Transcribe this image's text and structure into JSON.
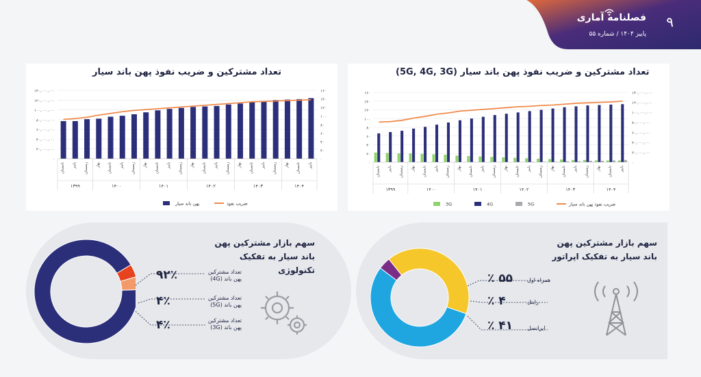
{
  "header": {
    "magazine_title": "فصلنامه آماری",
    "issue_line": "پاییز ۱۴۰۴ / شماره ۵۵",
    "page_number": "۹",
    "colors": {
      "header": "#3a2a78",
      "accent": "#f07a3c"
    }
  },
  "chart_data": [
    {
      "type": "bar",
      "title": "تعداد مشترکین و ضریب نفوذ پهن باند سیار",
      "categories": [
        "تابستان",
        "پاییز",
        "زمستان",
        "بهار",
        "تابستان",
        "پاییز",
        "زمستان",
        "بهار",
        "تابستان",
        "پاییز",
        "زمستان",
        "بهار",
        "تابستان",
        "پاییز",
        "زمستان",
        "بهار",
        "تابستان",
        "پاییز",
        "زمستان",
        "بهار",
        "تابستان",
        "پاییز"
      ],
      "year_groups": [
        {
          "label": "۱۳۹۹",
          "count": 3
        },
        {
          "label": "۱۴۰۰",
          "count": 4
        },
        {
          "label": "۱۴۰۱",
          "count": 4
        },
        {
          "label": "۱۴۰۲",
          "count": 4
        },
        {
          "label": "۱۴۰۳",
          "count": 4
        },
        {
          "label": "۱۴۰۴",
          "count": 3
        }
      ],
      "series": [
        {
          "name": "پهن باند سیار",
          "type": "bar",
          "axis": "left",
          "color": "#2b2f7a",
          "values": [
            77,
            77,
            81,
            82,
            86,
            88,
            91,
            95,
            99,
            102,
            104,
            106,
            107,
            108,
            111,
            113,
            116,
            118,
            120,
            121,
            122,
            124
          ]
        },
        {
          "name": "ضریب نفوذ",
          "type": "line",
          "axis": "right",
          "color": "#f08a4b",
          "values": [
            92,
            94,
            97,
            102,
            106,
            110,
            113,
            115,
            117,
            119,
            121,
            123,
            125,
            127,
            129,
            131,
            133,
            134,
            135,
            136,
            137,
            138
          ]
        }
      ],
      "left_axis": {
        "ylim": [
          0,
          140000000
        ],
        "ticks": [
          "۰",
          "۲۰,۰۰۰,۰۰۰",
          "۴۰,۰۰۰,۰۰۰",
          "۶۰,۰۰۰,۰۰۰",
          "۸۰,۰۰۰,۰۰۰",
          "۱۰۰,۰۰۰,۰۰۰",
          "۱۲۰,۰۰۰,۰۰۰",
          "۱۴۰,۰۰۰,۰۰۰"
        ]
      },
      "right_axis": {
        "ylim": [
          0,
          160
        ],
        "ticks": [
          "۰",
          "۲۰",
          "۴۰",
          "۶۰",
          "۸۰",
          "۱۰۰",
          "۱۲۰",
          "۱۴۰",
          "۱۶۰"
        ]
      },
      "legend": [
        "ضریب نفوذ",
        "پهن باند سیار"
      ]
    },
    {
      "type": "bar",
      "title": "تعداد مشترکین و ضریب نفوذ پهن باند سیار (5G, 4G, 3G)",
      "categories": [
        "تابستان",
        "پاییز",
        "زمستان",
        "بهار",
        "تابستان",
        "پاییز",
        "زمستان",
        "بهار",
        "تابستان",
        "پاییز",
        "زمستان",
        "بهار",
        "تابستان",
        "پاییز",
        "زمستان",
        "بهار",
        "تابستان",
        "پاییز",
        "زمستان",
        "بهار",
        "تابستان",
        "پاییز"
      ],
      "year_groups": [
        {
          "label": "۱۳۹۹",
          "count": 3
        },
        {
          "label": "۱۴۰۰",
          "count": 4
        },
        {
          "label": "۱۴۰۱",
          "count": 4
        },
        {
          "label": "۱۴۰۲",
          "count": 4
        },
        {
          "label": "۱۴۰۳",
          "count": 4
        },
        {
          "label": "۱۴۰۴",
          "count": 3
        }
      ],
      "series": [
        {
          "name": "3G",
          "type": "bar",
          "axis": "right",
          "color": "#8fd36b",
          "values": [
            22,
            21,
            20,
            20,
            19,
            18,
            17,
            15,
            14,
            13,
            12,
            11,
            10,
            9,
            8,
            7,
            6,
            5,
            5,
            4,
            4,
            4
          ]
        },
        {
          "name": "4G",
          "type": "bar",
          "axis": "right",
          "color": "#2b2f7a",
          "values": [
            66,
            69,
            72,
            77,
            81,
            86,
            91,
            96,
            100,
            104,
            108,
            111,
            114,
            117,
            120,
            123,
            126,
            128,
            130,
            131,
            132,
            133
          ]
        },
        {
          "name": "5G",
          "type": "bar",
          "axis": "right",
          "color": "#a7a9ad",
          "values": [
            0,
            0,
            0,
            0,
            0,
            0,
            0,
            0,
            0,
            0,
            0,
            0,
            0,
            1,
            1,
            1,
            2,
            2,
            3,
            3,
            4,
            5
          ]
        },
        {
          "name": "ضریب نفوذ پهن باند سیار",
          "type": "line",
          "axis": "right",
          "color": "#f08a4b",
          "values": [
            92,
            93,
            96,
            101,
            105,
            110,
            113,
            117,
            119,
            121,
            123,
            125,
            127,
            128,
            130,
            131,
            133,
            135,
            136,
            137,
            138,
            140
          ]
        }
      ],
      "left_axis": {
        "ylim": [
          0,
          160
        ],
        "ticks": [
          "۰",
          "۲۰",
          "۴۰",
          "۶۰",
          "۸۰",
          "۱۰۰",
          "۱۲۰",
          "۱۴۰",
          "۱۶۰"
        ]
      },
      "right_axis": {
        "ylim": [
          0,
          140000000
        ],
        "ticks": [
          "۰",
          "۲۰,۰۰۰,۰۰۰",
          "۴۰,۰۰۰,۰۰۰",
          "۶۰,۰۰۰,۰۰۰",
          "۸۰,۰۰۰,۰۰۰",
          "۱۰۰,۰۰۰,۰۰۰",
          "۱۲۰,۰۰۰,۰۰۰",
          "۱۴۰,۰۰۰,۰۰۰"
        ]
      },
      "legend": [
        "3G",
        "4G",
        "5G",
        "ضریب نفوذ پهن باند سیار"
      ]
    },
    {
      "type": "pie",
      "title": "سهم بازار مشترکین پهن باند سیار به تفکیک تکنولوژی",
      "slices": [
        {
          "label": "تعداد مشترکین پهن باند (4G)",
          "value": 92,
          "display": "۹۲٪",
          "color": "#2b2f7a"
        },
        {
          "label": "تعداد مشترکین پهن باند (5G)",
          "value": 4,
          "display": "۴٪",
          "color": "#e8431f"
        },
        {
          "label": "تعداد مشترکین پهن باند (3G)",
          "value": 4,
          "display": "۴٪",
          "color": "#f39a6a"
        }
      ]
    },
    {
      "type": "pie",
      "title": "سهم بازار مشترکین پهن باند سیار به تفکیک اپراتور",
      "slices": [
        {
          "label": "همراه اول",
          "value": 55,
          "display": "۵۵ ٪",
          "color": "#1fa6e0"
        },
        {
          "label": "رایتل",
          "value": 4,
          "display": "۴ ٪",
          "color": "#7a2d86"
        },
        {
          "label": "ایرانسل",
          "value": 41,
          "display": "۴۱ ٪",
          "color": "#f5c72a"
        }
      ]
    }
  ]
}
